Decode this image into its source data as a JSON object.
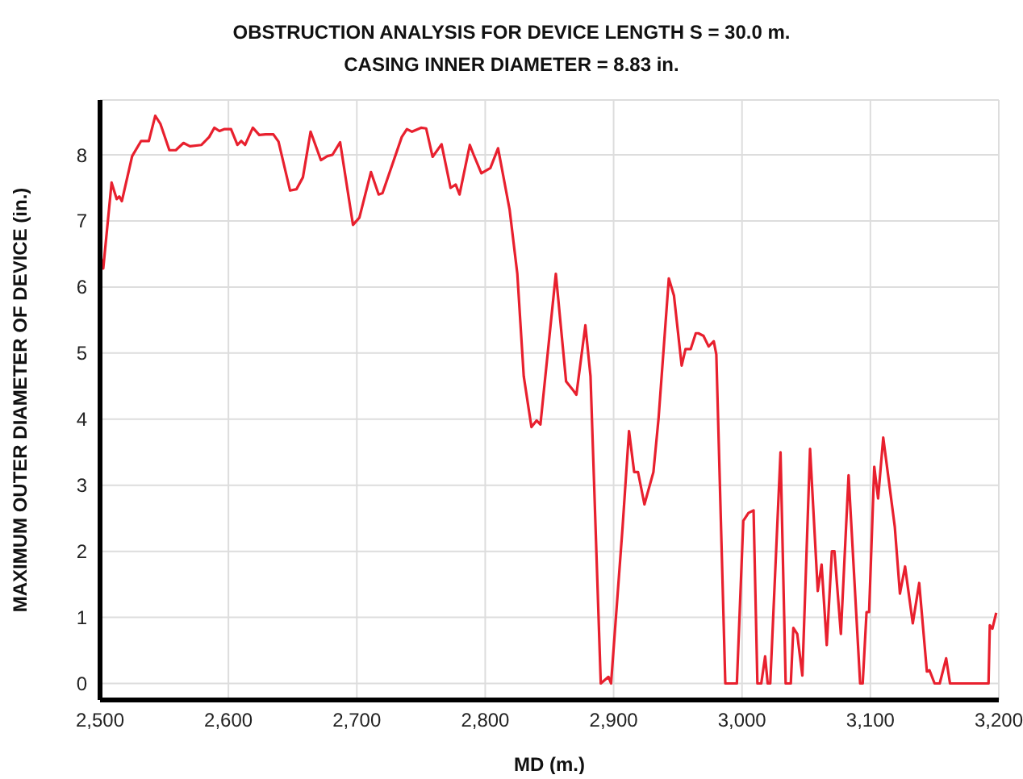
{
  "chart_data": {
    "type": "line",
    "title": "OBSTRUCTION ANALYSIS FOR DEVICE LENGTH S = 30.0 m.",
    "subtitle": "CASING INNER DIAMETER = 8.83 in.",
    "xlabel": "MD (m.)",
    "ylabel": "MAXIMUM OUTER DIAMETER OF DEVICE (in.)",
    "xlim": [
      2500,
      3200
    ],
    "ylim": [
      -0.25,
      8.83
    ],
    "xticks": [
      {
        "value": 2500,
        "label": "2,500"
      },
      {
        "value": 2600,
        "label": "2,600"
      },
      {
        "value": 2700,
        "label": "2,700"
      },
      {
        "value": 2800,
        "label": "2,800"
      },
      {
        "value": 2900,
        "label": "2,900"
      },
      {
        "value": 3000,
        "label": "3,000"
      },
      {
        "value": 3100,
        "label": "3,100"
      },
      {
        "value": 3200,
        "label": "3,200"
      }
    ],
    "yticks": [
      0,
      1,
      2,
      3,
      4,
      5,
      6,
      7,
      8
    ],
    "grid": true,
    "marker": "none",
    "line_style": "solid",
    "series": [
      {
        "color": "#e8202e",
        "x": [
          2500,
          2502.5,
          2509,
          2513,
          2515,
          2517,
          2525,
          2532,
          2538,
          2543,
          2547,
          2554,
          2559,
          2565,
          2570,
          2579,
          2585,
          2589,
          2593,
          2597,
          2602,
          2607,
          2610,
          2613,
          2619,
          2624,
          2629,
          2635,
          2639,
          2648,
          2653,
          2658,
          2664,
          2672,
          2677,
          2681,
          2687,
          2697,
          2702,
          2711,
          2717,
          2720,
          2735,
          2739,
          2743,
          2750,
          2754,
          2759,
          2766,
          2773,
          2777,
          2780,
          2788,
          2791,
          2797,
          2804,
          2810,
          2819,
          2825,
          2830,
          2836,
          2840,
          2843,
          2855,
          2863,
          2868,
          2871,
          2878,
          2882,
          2890,
          2896,
          2898,
          2907,
          2912,
          2916,
          2919,
          2924,
          2931,
          2935,
          2943,
          2947,
          2953,
          2956,
          2960,
          2964,
          2966,
          2970,
          2974,
          2978,
          2980,
          2987,
          2996,
          3001,
          3005,
          3009,
          3012,
          3015,
          3018,
          3020,
          3022,
          3030,
          3034,
          3038,
          3040,
          3043,
          3047,
          3053,
          3059,
          3062,
          3066,
          3070,
          3072,
          3077,
          3083,
          3092,
          3094,
          3097,
          3099,
          3103,
          3106,
          3110,
          3119,
          3123,
          3127,
          3133,
          3138,
          3144,
          3146,
          3150,
          3154,
          3159,
          3162,
          3192,
          3193,
          3195,
          3198
        ],
        "values": [
          6.52,
          6.28,
          7.58,
          7.33,
          7.37,
          7.3,
          7.98,
          8.21,
          8.21,
          8.59,
          8.47,
          8.07,
          8.07,
          8.18,
          8.13,
          8.15,
          8.27,
          8.41,
          8.36,
          8.39,
          8.39,
          8.15,
          8.21,
          8.15,
          8.41,
          8.3,
          8.31,
          8.31,
          8.2,
          7.46,
          7.48,
          7.66,
          8.35,
          7.92,
          7.98,
          8.0,
          8.19,
          6.94,
          7.05,
          7.74,
          7.4,
          7.42,
          8.27,
          8.39,
          8.35,
          8.41,
          8.4,
          7.97,
          8.16,
          7.5,
          7.55,
          7.4,
          8.15,
          8.0,
          7.72,
          7.8,
          8.1,
          7.17,
          6.2,
          4.65,
          3.88,
          3.98,
          3.92,
          6.2,
          4.57,
          4.45,
          4.37,
          5.42,
          4.65,
          0,
          0.1,
          0,
          2.37,
          3.82,
          3.2,
          3.2,
          2.71,
          3.2,
          4.01,
          6.13,
          5.87,
          4.81,
          5.06,
          5.06,
          5.3,
          5.3,
          5.26,
          5.1,
          5.18,
          4.98,
          0,
          0,
          2.46,
          2.58,
          2.62,
          0,
          0,
          0.41,
          0,
          0,
          3.5,
          0,
          0,
          0.84,
          0.75,
          0.12,
          3.55,
          1.4,
          1.8,
          0.58,
          2.0,
          2.0,
          0.75,
          3.15,
          0,
          0,
          1.08,
          1.08,
          3.28,
          2.8,
          3.72,
          2.37,
          1.36,
          1.77,
          0.91,
          1.52,
          0.18,
          0.2,
          0,
          0,
          0.38,
          0,
          0,
          0.88,
          0.83,
          1.07
        ]
      }
    ]
  }
}
